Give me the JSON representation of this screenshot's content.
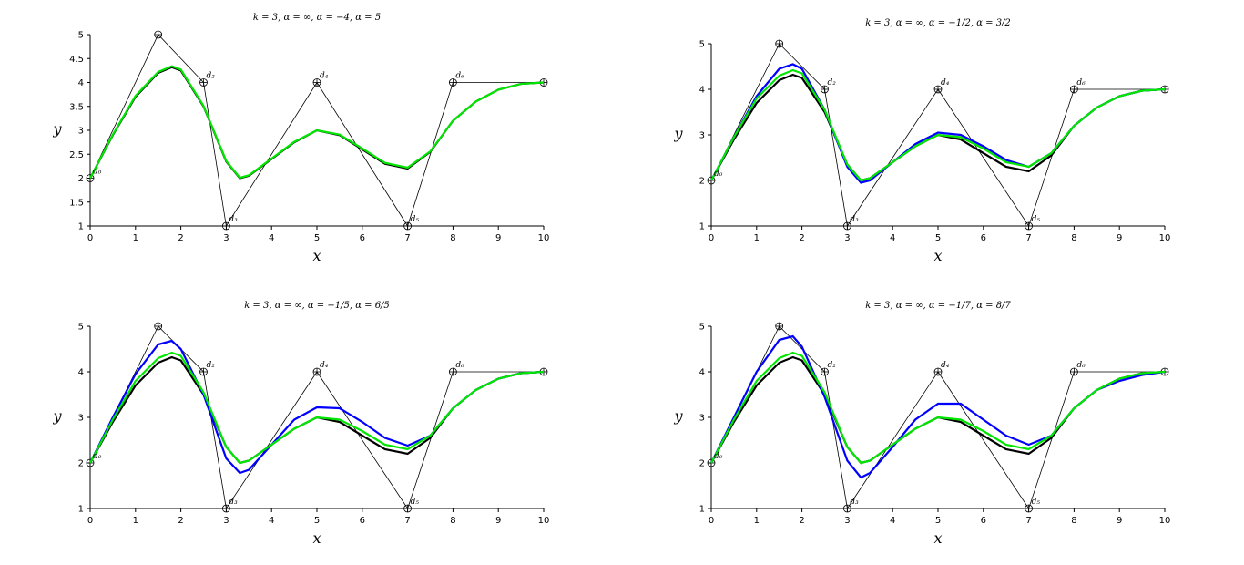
{
  "chart_data": [
    {
      "type": "line",
      "title": "k = 3, α = ∞, α = −4, α = 5",
      "x_label": "x",
      "y_label": "y",
      "xlim": [
        0,
        10
      ],
      "ylim": [
        1,
        5
      ],
      "xticks": [
        0,
        1,
        2,
        3,
        4,
        5,
        6,
        7,
        8,
        9,
        10
      ],
      "yticks": [
        1,
        1.5,
        2,
        2.5,
        3,
        3.5,
        4,
        4.5,
        5
      ],
      "series": [
        {
          "color": "#000000",
          "markers": true,
          "x": [
            0,
            1.5,
            2.5,
            3,
            5,
            7,
            8,
            10
          ],
          "values": [
            2,
            5,
            4,
            1,
            4,
            1,
            4,
            4
          ]
        },
        {
          "color": "#000000",
          "x": [
            0,
            0.5,
            1,
            1.5,
            1.8,
            2,
            2.5,
            3,
            3.3,
            3.5,
            4,
            4.5,
            5,
            5.5,
            6,
            6.5,
            7,
            7.5,
            8,
            8.5,
            9,
            9.5,
            10
          ],
          "values": [
            2,
            2.9,
            3.7,
            4.2,
            4.32,
            4.25,
            3.5,
            2.35,
            2.0,
            2.05,
            2.4,
            2.75,
            3.0,
            2.9,
            2.6,
            2.3,
            2.2,
            2.55,
            3.2,
            3.6,
            3.85,
            3.97,
            4.0
          ]
        },
        {
          "color": "#00e600",
          "x": [
            0,
            0.5,
            1,
            1.5,
            1.8,
            2,
            2.5,
            3,
            3.3,
            3.5,
            4,
            4.5,
            5,
            5.5,
            6,
            6.5,
            7,
            7.5,
            8,
            8.5,
            9,
            9.5,
            10
          ],
          "values": [
            2,
            2.91,
            3.72,
            4.22,
            4.34,
            4.27,
            3.51,
            2.36,
            2.01,
            2.06,
            2.41,
            2.76,
            3.0,
            2.91,
            2.62,
            2.32,
            2.22,
            2.56,
            3.2,
            3.6,
            3.85,
            3.97,
            4.0
          ]
        }
      ],
      "annotations": [
        {
          "text": "d₀",
          "x": 0,
          "y": 2
        },
        {
          "text": "d₂",
          "x": 2.5,
          "y": 4
        },
        {
          "text": "d₃",
          "x": 3,
          "y": 1
        },
        {
          "text": "d₄",
          "x": 5,
          "y": 4
        },
        {
          "text": "d₅",
          "x": 7,
          "y": 1
        },
        {
          "text": "d₆",
          "x": 8,
          "y": 4
        }
      ]
    },
    {
      "type": "line",
      "title": "k = 3, α = ∞, α = −1/2, α = 3/2",
      "x_label": "x",
      "y_label": "y",
      "xlim": [
        0,
        10
      ],
      "ylim": [
        1,
        5
      ],
      "xticks": [
        0,
        1,
        2,
        3,
        4,
        5,
        6,
        7,
        8,
        9,
        10
      ],
      "yticks": [
        1,
        2,
        3,
        4,
        5
      ],
      "series": [
        {
          "color": "#000000",
          "markers": true,
          "x": [
            0,
            1.5,
            2.5,
            3,
            5,
            7,
            8,
            10
          ],
          "values": [
            2,
            5,
            4,
            1,
            4,
            1,
            4,
            4
          ]
        },
        {
          "color": "#000000",
          "x": [
            0,
            0.5,
            1,
            1.5,
            1.8,
            2,
            2.5,
            3,
            3.3,
            3.5,
            4,
            4.5,
            5,
            5.5,
            6,
            6.5,
            7,
            7.5,
            8,
            8.5,
            9,
            9.5,
            10
          ],
          "values": [
            2,
            2.9,
            3.7,
            4.2,
            4.32,
            4.25,
            3.5,
            2.35,
            2.0,
            2.05,
            2.4,
            2.75,
            3.0,
            2.9,
            2.6,
            2.3,
            2.2,
            2.55,
            3.2,
            3.6,
            3.85,
            3.97,
            4.0
          ]
        },
        {
          "color": "#0000ff",
          "x": [
            0,
            0.5,
            1,
            1.5,
            1.8,
            2,
            2.5,
            3,
            3.3,
            3.5,
            4,
            4.5,
            5,
            5.5,
            6,
            6.5,
            7,
            7.5,
            8,
            8.5,
            9,
            9.5,
            10
          ],
          "values": [
            2,
            2.95,
            3.85,
            4.45,
            4.55,
            4.45,
            3.55,
            2.3,
            1.95,
            2.0,
            2.4,
            2.8,
            3.05,
            3.0,
            2.75,
            2.45,
            2.3,
            2.6,
            3.2,
            3.6,
            3.85,
            3.97,
            4.0
          ]
        },
        {
          "color": "#00e600",
          "x": [
            0,
            0.5,
            1,
            1.5,
            1.8,
            2,
            2.5,
            3,
            3.3,
            3.5,
            4,
            4.5,
            5,
            5.5,
            6,
            6.5,
            7,
            7.5,
            8,
            8.5,
            9,
            9.5,
            10
          ],
          "values": [
            2,
            2.95,
            3.8,
            4.3,
            4.42,
            4.35,
            3.55,
            2.35,
            2.0,
            2.05,
            2.4,
            2.75,
            3.0,
            2.95,
            2.7,
            2.4,
            2.3,
            2.6,
            3.2,
            3.6,
            3.85,
            3.97,
            4.0
          ]
        }
      ],
      "annotations": [
        {
          "text": "d₀",
          "x": 0,
          "y": 2
        },
        {
          "text": "d₂",
          "x": 2.5,
          "y": 4
        },
        {
          "text": "d₃",
          "x": 3,
          "y": 1
        },
        {
          "text": "d₄",
          "x": 5,
          "y": 4
        },
        {
          "text": "d₅",
          "x": 7,
          "y": 1
        },
        {
          "text": "d₆",
          "x": 8,
          "y": 4
        }
      ]
    },
    {
      "type": "line",
      "title": "k = 3, α = ∞, α = −1/5, α = 6/5",
      "x_label": "x",
      "y_label": "y",
      "xlim": [
        0,
        10
      ],
      "ylim": [
        1,
        5
      ],
      "xticks": [
        0,
        1,
        2,
        3,
        4,
        5,
        6,
        7,
        8,
        9,
        10
      ],
      "yticks": [
        1,
        2,
        3,
        4,
        5
      ],
      "series": [
        {
          "color": "#000000",
          "markers": true,
          "x": [
            0,
            1.5,
            2.5,
            3,
            5,
            7,
            8,
            10
          ],
          "values": [
            2,
            5,
            4,
            1,
            4,
            1,
            4,
            4
          ]
        },
        {
          "color": "#000000",
          "x": [
            0,
            0.5,
            1,
            1.5,
            1.8,
            2,
            2.5,
            3,
            3.3,
            3.5,
            4,
            4.5,
            5,
            5.5,
            6,
            6.5,
            7,
            7.5,
            8,
            8.5,
            9,
            9.5,
            10
          ],
          "values": [
            2,
            2.9,
            3.7,
            4.2,
            4.32,
            4.25,
            3.5,
            2.35,
            2.0,
            2.05,
            2.4,
            2.75,
            3.0,
            2.9,
            2.6,
            2.3,
            2.2,
            2.55,
            3.2,
            3.6,
            3.85,
            3.97,
            4.0
          ]
        },
        {
          "color": "#0000ff",
          "x": [
            0,
            0.5,
            1,
            1.5,
            1.8,
            2,
            2.5,
            3,
            3.3,
            3.5,
            4,
            4.5,
            5,
            5.5,
            6,
            6.5,
            7,
            7.5,
            8,
            8.5,
            9,
            9.5,
            10
          ],
          "values": [
            2,
            3.0,
            3.95,
            4.6,
            4.68,
            4.5,
            3.5,
            2.1,
            1.78,
            1.85,
            2.4,
            2.95,
            3.22,
            3.2,
            2.9,
            2.55,
            2.38,
            2.6,
            3.2,
            3.6,
            3.85,
            3.97,
            4.0
          ]
        },
        {
          "color": "#00e600",
          "x": [
            0,
            0.5,
            1,
            1.5,
            1.8,
            2,
            2.5,
            3,
            3.3,
            3.5,
            4,
            4.5,
            5,
            5.5,
            6,
            6.5,
            7,
            7.5,
            8,
            8.5,
            9,
            9.5,
            10
          ],
          "values": [
            2,
            2.95,
            3.8,
            4.3,
            4.42,
            4.35,
            3.55,
            2.35,
            2.0,
            2.05,
            2.4,
            2.75,
            3.0,
            2.95,
            2.7,
            2.4,
            2.3,
            2.6,
            3.2,
            3.6,
            3.85,
            3.97,
            4.0
          ]
        }
      ],
      "annotations": [
        {
          "text": "d₀",
          "x": 0,
          "y": 2
        },
        {
          "text": "d₂",
          "x": 2.5,
          "y": 4
        },
        {
          "text": "d₃",
          "x": 3,
          "y": 1
        },
        {
          "text": "d₄",
          "x": 5,
          "y": 4
        },
        {
          "text": "d₅",
          "x": 7,
          "y": 1
        },
        {
          "text": "d₆",
          "x": 8,
          "y": 4
        }
      ]
    },
    {
      "type": "line",
      "title": "k = 3, α = ∞, α = −1/7, α = 8/7",
      "x_label": "x",
      "y_label": "y",
      "xlim": [
        0,
        10
      ],
      "ylim": [
        1,
        5
      ],
      "xticks": [
        0,
        1,
        2,
        3,
        4,
        5,
        6,
        7,
        8,
        9,
        10
      ],
      "yticks": [
        1,
        2,
        3,
        4,
        5
      ],
      "series": [
        {
          "color": "#000000",
          "markers": true,
          "x": [
            0,
            1.5,
            2.5,
            3,
            5,
            7,
            8,
            10
          ],
          "values": [
            2,
            5,
            4,
            1,
            4,
            1,
            4,
            4
          ]
        },
        {
          "color": "#000000",
          "x": [
            0,
            0.5,
            1,
            1.5,
            1.8,
            2,
            2.5,
            3,
            3.3,
            3.5,
            4,
            4.5,
            5,
            5.5,
            6,
            6.5,
            7,
            7.5,
            8,
            8.5,
            9,
            9.5,
            10
          ],
          "values": [
            2,
            2.9,
            3.7,
            4.2,
            4.32,
            4.25,
            3.5,
            2.35,
            2.0,
            2.05,
            2.4,
            2.75,
            3.0,
            2.9,
            2.6,
            2.3,
            2.2,
            2.55,
            3.2,
            3.6,
            3.85,
            3.97,
            4.0
          ]
        },
        {
          "color": "#0000ff",
          "x": [
            0,
            0.5,
            1,
            1.5,
            1.8,
            2,
            2.5,
            3,
            3.3,
            3.5,
            4,
            4.5,
            5,
            5.5,
            6,
            6.5,
            7,
            7.5,
            8,
            8.5,
            9,
            9.5,
            10
          ],
          "values": [
            2,
            3.0,
            4.0,
            4.7,
            4.78,
            4.55,
            3.45,
            2.05,
            1.68,
            1.78,
            2.35,
            2.95,
            3.3,
            3.3,
            2.95,
            2.6,
            2.4,
            2.6,
            3.2,
            3.6,
            3.8,
            3.93,
            4.0
          ]
        },
        {
          "color": "#00e600",
          "x": [
            0,
            0.5,
            1,
            1.5,
            1.8,
            2,
            2.5,
            3,
            3.3,
            3.5,
            4,
            4.5,
            5,
            5.5,
            6,
            6.5,
            7,
            7.5,
            8,
            8.5,
            9,
            9.5,
            10
          ],
          "values": [
            2,
            2.95,
            3.8,
            4.3,
            4.42,
            4.35,
            3.55,
            2.35,
            2.0,
            2.05,
            2.4,
            2.75,
            3.0,
            2.95,
            2.7,
            2.4,
            2.3,
            2.6,
            3.2,
            3.6,
            3.85,
            3.97,
            4.0
          ]
        }
      ],
      "annotations": [
        {
          "text": "d₀",
          "x": 0,
          "y": 2
        },
        {
          "text": "d₂",
          "x": 2.5,
          "y": 4
        },
        {
          "text": "d₃",
          "x": 3,
          "y": 1
        },
        {
          "text": "d₄",
          "x": 5,
          "y": 4
        },
        {
          "text": "d₅",
          "x": 7,
          "y": 1
        },
        {
          "text": "d₆",
          "x": 8,
          "y": 4
        }
      ]
    }
  ]
}
